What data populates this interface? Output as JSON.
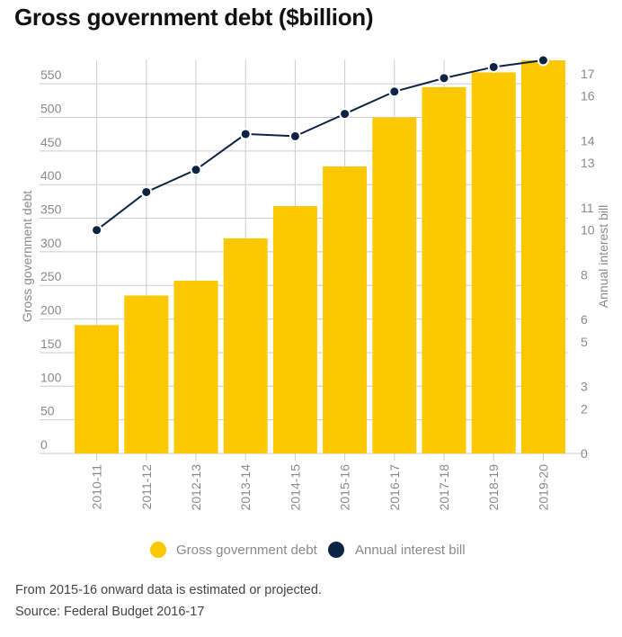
{
  "title": "Gross government debt ($billion)",
  "notes": {
    "line1": "From 2015-16 onward data is estimated or projected.",
    "line2": "Source: Federal Budget 2016-17"
  },
  "colors": {
    "debt": "#fdc800",
    "interest": "#0b2344",
    "grid": "#cccccc",
    "text": "#8a8a8a"
  },
  "chart_data": {
    "type": "bar",
    "title": "Gross government debt ($billion)",
    "categories": [
      "2010-11",
      "2011-12",
      "2012-13",
      "2013-14",
      "2014-15",
      "2015-16",
      "2016-17",
      "2017-18",
      "2018-19",
      "2019-20"
    ],
    "series": [
      {
        "name": "Gross government debt",
        "type": "bar",
        "axis": "left",
        "values": [
          191,
          235,
          257,
          320,
          368,
          427,
          500,
          545,
          567,
          585
        ]
      },
      {
        "name": "Annual interest bill",
        "type": "line",
        "axis": "right",
        "values": [
          10.0,
          11.7,
          12.7,
          14.3,
          14.2,
          15.2,
          16.2,
          16.8,
          17.3,
          17.6
        ]
      }
    ],
    "ylabel": "Gross government debt",
    "y2label": "Annual interest bill",
    "ylim": [
      0,
      585
    ],
    "y2lim": [
      0,
      17.6
    ],
    "yticks": [
      0,
      50,
      100,
      150,
      200,
      250,
      300,
      350,
      400,
      450,
      500,
      550
    ],
    "y2ticks": [
      {
        "value": 0,
        "label": "0"
      },
      {
        "value": 2,
        "label": "2"
      },
      {
        "value": 3,
        "label": "3"
      },
      {
        "value": 5,
        "label": "5"
      },
      {
        "value": 6,
        "label": "6"
      },
      {
        "value": 8,
        "label": "8"
      },
      {
        "value": 10,
        "label": "10"
      },
      {
        "value": 11,
        "label": "11"
      },
      {
        "value": 13,
        "label": "13"
      },
      {
        "value": 14,
        "label": "14"
      },
      {
        "value": 16,
        "label": "16"
      },
      {
        "value": 17,
        "label": "17"
      }
    ],
    "legend": [
      "Gross government debt",
      "Annual interest bill"
    ],
    "legend_position": "bottom",
    "grid": true
  }
}
